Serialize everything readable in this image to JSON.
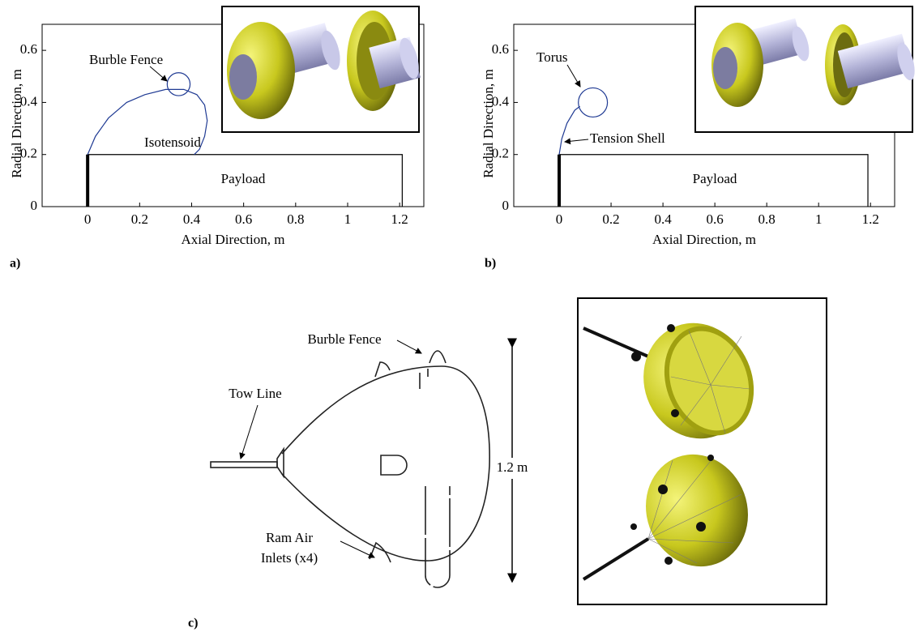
{
  "chart_data": [
    {
      "type": "line",
      "xlabel": "Axial Direction, m",
      "ylabel": "Radial Direction, m",
      "xlim": [
        -0.175,
        1.293
      ],
      "ylim": [
        0,
        0.7
      ],
      "xticks": [
        0,
        0.2,
        0.4,
        0.6,
        0.8,
        1,
        1.2
      ],
      "yticks": [
        0,
        0.2,
        0.4,
        0.6
      ],
      "series": [
        {
          "color": "#000000",
          "x": [
            0,
            0,
            1.21,
            1.21
          ],
          "values": [
            0,
            0.2,
            0.2,
            0
          ]
        },
        {
          "color": "#000000",
          "linewidth": 4,
          "x": [
            0,
            0
          ],
          "values": [
            0,
            0.2
          ]
        },
        {
          "color": "#1f3a93",
          "x": [
            0,
            0.03,
            0.08,
            0.15,
            0.22,
            0.3,
            0.37,
            0.42,
            0.45,
            0.46,
            0.45,
            0.43,
            0.41
          ],
          "values": [
            0.2,
            0.27,
            0.34,
            0.4,
            0.43,
            0.45,
            0.45,
            0.43,
            0.39,
            0.33,
            0.27,
            0.22,
            0.2
          ]
        }
      ],
      "shapes": [
        {
          "type": "circle",
          "color": "#1f3a93",
          "cx": 0.35,
          "cy": 0.47,
          "r": 0.044
        }
      ],
      "annotations": [
        "Burble Fence",
        "Isotensoid",
        "Payload"
      ]
    },
    {
      "type": "line",
      "xlabel": "Axial Direction, m",
      "ylabel": "Radial Direction, m",
      "xlim": [
        -0.175,
        1.293
      ],
      "ylim": [
        0,
        0.7
      ],
      "xticks": [
        0,
        0.2,
        0.4,
        0.6,
        0.8,
        1,
        1.2
      ],
      "yticks": [
        0,
        0.2,
        0.4,
        0.6
      ],
      "series": [
        {
          "color": "#000000",
          "x": [
            0,
            0,
            1.19,
            1.19
          ],
          "values": [
            0,
            0.2,
            0.2,
            0
          ]
        },
        {
          "color": "#000000",
          "linewidth": 4,
          "x": [
            0,
            0
          ],
          "values": [
            0,
            0.2
          ]
        },
        {
          "color": "#1f3a93",
          "x": [
            0,
            0.01,
            0.03,
            0.06,
            0.08
          ],
          "values": [
            0.2,
            0.26,
            0.32,
            0.37,
            0.385
          ]
        }
      ],
      "shapes": [
        {
          "type": "circle",
          "color": "#1f3a93",
          "cx": 0.13,
          "cy": 0.4,
          "r": 0.056
        }
      ],
      "annotations": [
        "Torus",
        "Tension Shell",
        "Payload"
      ]
    }
  ],
  "panel_labels": [
    "a)",
    "b)",
    "c)"
  ],
  "diagram": {
    "labels": [
      "Burble Fence",
      "Tow Line",
      "Ram Air",
      "Inlets (x4)",
      "1.2 m"
    ]
  }
}
